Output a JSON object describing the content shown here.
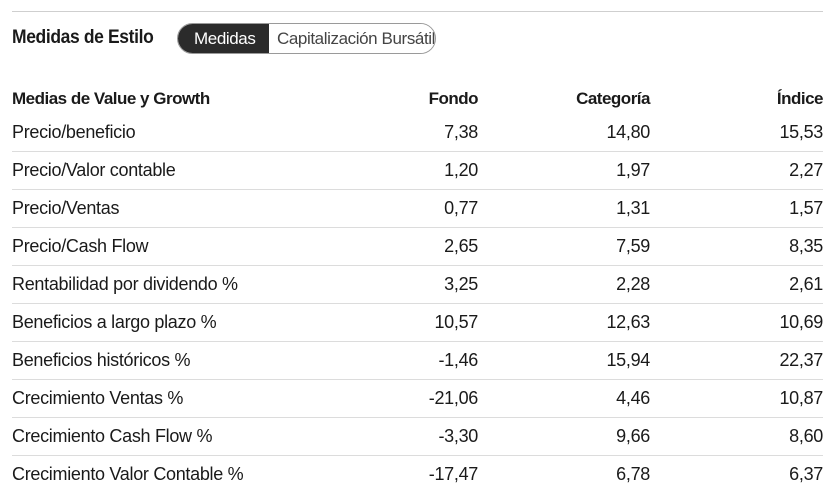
{
  "section": {
    "title": "Medidas de Estilo",
    "tabs": [
      {
        "label": "Medidas",
        "active": true
      },
      {
        "label": "Capitalización Bursátil",
        "active": false
      }
    ]
  },
  "table": {
    "headers": [
      "Medias de Value y Growth",
      "Fondo",
      "Categoría",
      "Índice"
    ],
    "rows": [
      {
        "label": "Precio/beneficio",
        "fondo": "7,38",
        "categoria": "14,80",
        "indice": "15,53"
      },
      {
        "label": "Precio/Valor contable",
        "fondo": "1,20",
        "categoria": "1,97",
        "indice": "2,27"
      },
      {
        "label": "Precio/Ventas",
        "fondo": "0,77",
        "categoria": "1,31",
        "indice": "1,57"
      },
      {
        "label": "Precio/Cash Flow",
        "fondo": "2,65",
        "categoria": "7,59",
        "indice": "8,35"
      },
      {
        "label": "Rentabilidad por dividendo %",
        "fondo": "3,25",
        "categoria": "2,28",
        "indice": "2,61"
      },
      {
        "label": "Beneficios a largo plazo %",
        "fondo": "10,57",
        "categoria": "12,63",
        "indice": "10,69"
      },
      {
        "label": "Beneficios históricos %",
        "fondo": "-1,46",
        "categoria": "15,94",
        "indice": "22,37"
      },
      {
        "label": "Crecimiento Ventas %",
        "fondo": "-21,06",
        "categoria": "4,46",
        "indice": "10,87"
      },
      {
        "label": "Crecimiento Cash Flow %",
        "fondo": "-3,30",
        "categoria": "9,66",
        "indice": "8,60"
      },
      {
        "label": "Crecimiento Valor Contable %",
        "fondo": "-17,47",
        "categoria": "6,78",
        "indice": "6,37"
      }
    ]
  },
  "colors": {
    "active_tab_bg": "#2b2b2b",
    "active_tab_text": "#ffffff",
    "divider": "#dcdcdc",
    "text": "#1a1a1a"
  }
}
